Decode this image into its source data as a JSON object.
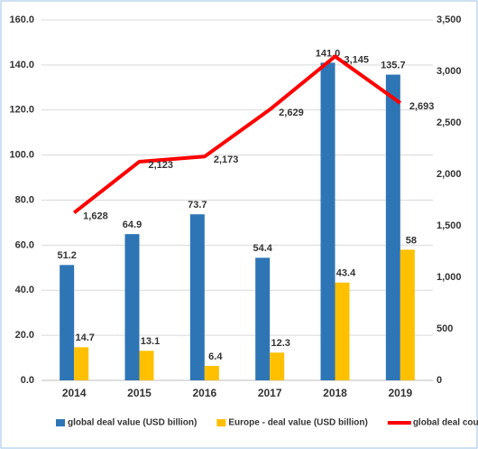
{
  "chart_data": {
    "type": "bar",
    "categories": [
      "2014",
      "2015",
      "2016",
      "2017",
      "2018",
      "2019"
    ],
    "series": [
      {
        "name": "global deal value (USD billion)",
        "color": "#2e75b6",
        "values": [
          51.2,
          64.9,
          73.7,
          54.4,
          141.0,
          135.7
        ],
        "value_labels": [
          "51.2",
          "64.9",
          "73.7",
          "54.4",
          "141.0",
          "135.7"
        ]
      },
      {
        "name": "Europe - deal value (USD billion)",
        "color": "#ffc000",
        "values": [
          14.7,
          13.1,
          6.4,
          12.3,
          43.4,
          58
        ]
      },
      {
        "name": "global deal count",
        "color": "#ff0000",
        "type": "line",
        "axis": "y2",
        "values": [
          1628,
          2123,
          2173,
          2629,
          3145,
          2693
        ],
        "value_labels": [
          "1,628",
          "2,123",
          "2,173",
          "2,629",
          "3,145",
          "2,693"
        ]
      }
    ],
    "ylim": [
      0,
      160
    ],
    "yticks": [
      {
        "value": 0,
        "label": "0.0"
      },
      {
        "value": 20,
        "label": "20.0"
      },
      {
        "value": 40,
        "label": "40.0"
      },
      {
        "value": 60,
        "label": "60.0"
      },
      {
        "value": 80,
        "label": "80.0"
      },
      {
        "value": 100,
        "label": "100.0"
      },
      {
        "value": 120,
        "label": "120.0"
      },
      {
        "value": 140,
        "label": "140.0"
      },
      {
        "value": 160,
        "label": "160.0"
      }
    ],
    "y2lim": [
      0,
      3500
    ],
    "y2ticks": [
      0,
      500,
      {
        "value": 1000,
        "label": "1,000"
      },
      {
        "value": 1500,
        "label": "1,500"
      },
      {
        "value": 2000,
        "label": "2,000"
      },
      {
        "value": 2500,
        "label": "2,500"
      },
      {
        "value": 3000,
        "label": "3,000"
      },
      {
        "value": 3500,
        "label": "3,500"
      }
    ],
    "grid": true,
    "legend": "bottom"
  }
}
